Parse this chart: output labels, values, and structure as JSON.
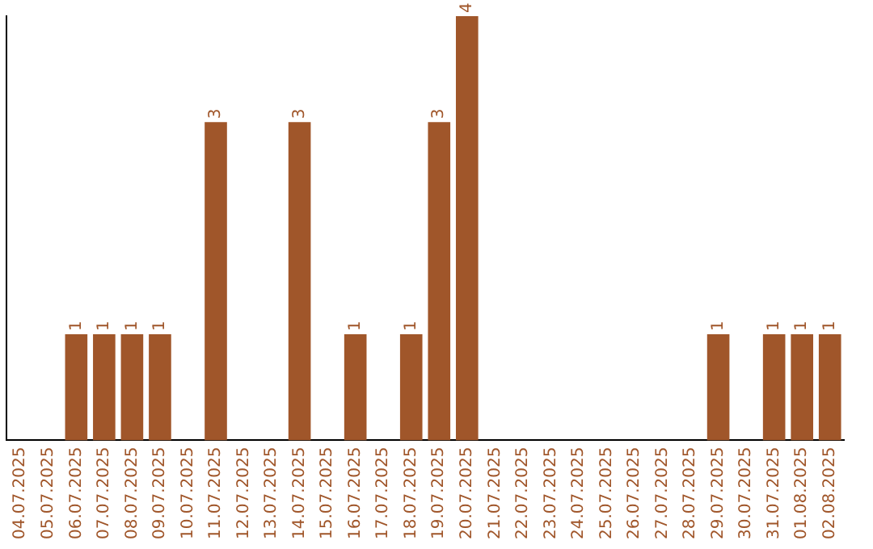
{
  "chart_data": {
    "type": "bar",
    "categories": [
      "04.07.2025",
      "05.07.2025",
      "06.07.2025",
      "07.07.2025",
      "08.07.2025",
      "09.07.2025",
      "10.07.2025",
      "11.07.2025",
      "12.07.2025",
      "13.07.2025",
      "14.07.2025",
      "15.07.2025",
      "16.07.2025",
      "17.07.2025",
      "18.07.2025",
      "19.07.2025",
      "20.07.2025",
      "21.07.2025",
      "22.07.2025",
      "23.07.2025",
      "24.07.2025",
      "25.07.2025",
      "26.07.2025",
      "27.07.2025",
      "28.07.2025",
      "29.07.2025",
      "30.07.2025",
      "31.07.2025",
      "01.08.2025",
      "02.08.2025"
    ],
    "values": [
      0,
      0,
      1,
      1,
      1,
      1,
      0,
      3,
      0,
      0,
      3,
      0,
      1,
      0,
      1,
      3,
      4,
      0,
      0,
      0,
      0,
      0,
      0,
      0,
      0,
      1,
      0,
      1,
      1,
      1
    ],
    "value_labels": [
      null,
      null,
      "1",
      "1",
      "1",
      "1",
      null,
      "3",
      null,
      null,
      "3",
      null,
      "1",
      null,
      "1",
      "3",
      "4",
      null,
      null,
      null,
      null,
      null,
      null,
      null,
      null,
      "1",
      null,
      "1",
      "1",
      "1"
    ],
    "color": "#a0562a",
    "ylim": [
      0,
      4
    ],
    "tick_labels": "x",
    "grid": false,
    "legend": false
  }
}
